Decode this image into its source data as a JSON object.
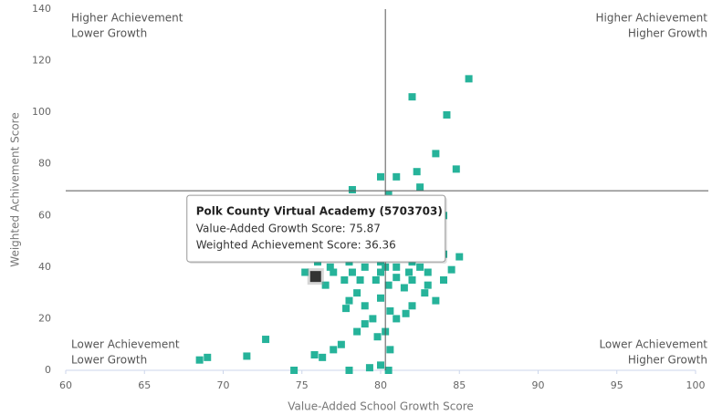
{
  "chart_data": {
    "type": "scatter",
    "xlabel": "Value-Added School Growth Score",
    "ylabel": "Weighted Achivement Score",
    "xlim": [
      60,
      100
    ],
    "ylim": [
      0,
      140
    ],
    "xticks": [
      60,
      65,
      70,
      75,
      80,
      85,
      90,
      95,
      100
    ],
    "yticks": [
      0,
      20,
      40,
      60,
      80,
      100,
      120,
      140
    ],
    "color": "#26b39a",
    "reference_lines": {
      "x": 80.3,
      "y": 69.6,
      "color": "#555555"
    },
    "annotations": [
      {
        "corner": "top-left",
        "lines": [
          "Higher Achievement",
          "Lower Growth"
        ]
      },
      {
        "corner": "top-right",
        "lines": [
          "Higher Achievement",
          "Higher Growth"
        ]
      },
      {
        "corner": "bottom-left",
        "lines": [
          "Lower Achievement",
          "Lower Growth"
        ]
      },
      {
        "corner": "bottom-right",
        "lines": [
          "Lower Achievement",
          "Higher Growth"
        ]
      }
    ],
    "x": [
      85.6,
      82,
      84.2,
      83.5,
      84.8,
      82.3,
      80,
      81,
      82.5,
      78.2,
      85,
      84.5,
      83.5,
      84,
      68.5,
      69,
      71.5,
      72.7,
      74.5,
      75.8,
      76.3,
      77,
      77.5,
      78,
      78.5,
      79,
      79.5,
      79.3,
      80,
      80.5,
      79.8,
      80.6,
      81,
      81.6,
      82,
      82.8,
      83,
      83,
      76.5,
      77,
      78,
      78.5,
      77.8,
      79,
      80,
      80.6,
      80.3,
      76,
      75.2,
      78.5,
      79,
      79.5,
      78.8,
      80.5,
      81.5,
      82,
      83,
      84,
      82.7,
      83.5,
      84,
      82,
      81,
      80,
      79,
      78,
      77.5,
      78,
      79,
      80,
      81,
      82,
      83,
      80,
      79.5,
      81,
      82,
      81.5,
      80.5,
      79.7,
      78.7,
      77.7,
      81,
      80,
      79,
      80.5,
      81.5,
      80,
      78.5,
      77.6,
      82.3,
      80.8,
      79.7,
      80.3,
      81.8,
      78.2,
      76.8,
      82.5,
      83.2,
      77.2
    ],
    "values": [
      113,
      106,
      99,
      84,
      78,
      77,
      75,
      75,
      71,
      70,
      44,
      39,
      27,
      35,
      4,
      5,
      5.5,
      12,
      0,
      6,
      5,
      8,
      10,
      0,
      15,
      18,
      20,
      1,
      2,
      0,
      13,
      23,
      20,
      22,
      25,
      30,
      33,
      38,
      33,
      38,
      27,
      30,
      24,
      25,
      28,
      8,
      15,
      42,
      38,
      55,
      60,
      65,
      63,
      68,
      66,
      63,
      58,
      60,
      55,
      50,
      45,
      48,
      50,
      52,
      50,
      48,
      45,
      42,
      40,
      38,
      40,
      42,
      44,
      45,
      45,
      45,
      35,
      32,
      33,
      35,
      35,
      35,
      36,
      42,
      46,
      48,
      55,
      58,
      52,
      52,
      52,
      61,
      55,
      40,
      38,
      38,
      40,
      40,
      47,
      48
    ],
    "highlight": {
      "x": 75.87,
      "y": 36.36,
      "color": "#333333"
    },
    "tooltip": {
      "title": "Polk County Virtual Academy (5703703)",
      "lines": [
        "Value-Added Growth Score: 75.87",
        "Weighted Achievement Score: 36.36"
      ]
    }
  }
}
